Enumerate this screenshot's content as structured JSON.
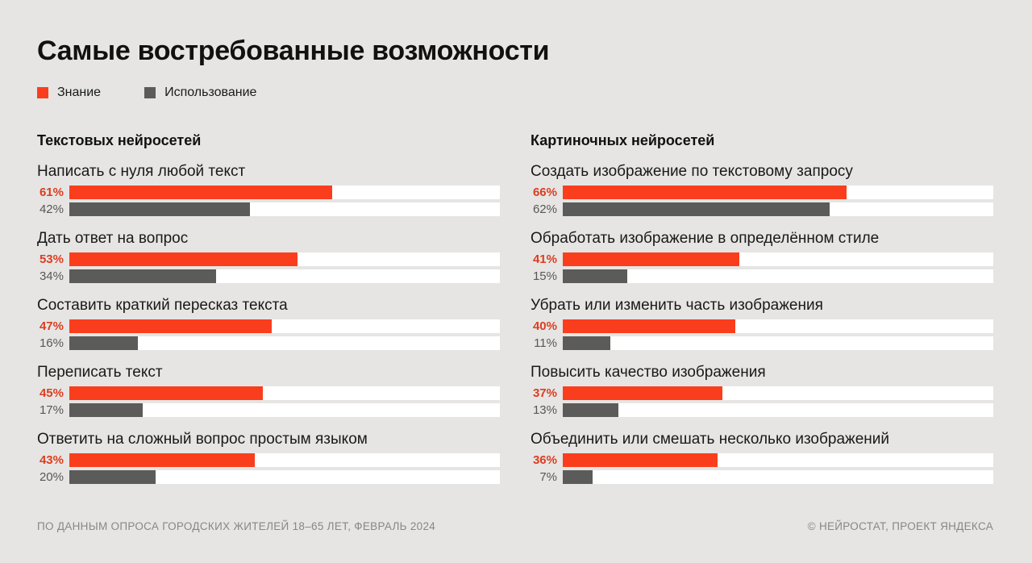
{
  "title": "Самые востребованные возможности",
  "legend": [
    {
      "label": "Знание",
      "color": "#fa3e1d"
    },
    {
      "label": "Использование",
      "color": "#5b5b59"
    }
  ],
  "colors": {
    "background": "#e6e5e3",
    "track": "#ffffff",
    "accent_red": "#fa3e1d",
    "accent_red_text": "#dd3d20",
    "bar_gray": "#5b5b59"
  },
  "footer": {
    "left": "ПО ДАННЫМ ОПРОСА ГОРОДСКИХ ЖИТЕЛЕЙ 18–65 ЛЕТ, ФЕВРАЛЬ 2024",
    "right": "© НЕЙРОСТАТ, ПРОЕКТ ЯНДЕКСА"
  },
  "chart_data": {
    "type": "bar",
    "orientation": "horizontal",
    "value_format": "percent",
    "xlim": [
      0,
      100
    ],
    "grid": false,
    "legend_position": "top-left",
    "series_names": [
      "Знание",
      "Использование"
    ],
    "groups": [
      {
        "title": "Текстовых нейросетей",
        "items": [
          {
            "label": "Написать с нуля любой текст",
            "values": [
              61,
              42
            ],
            "display": [
              "61%",
              "42%"
            ]
          },
          {
            "label": "Дать ответ на вопрос",
            "values": [
              53,
              34
            ],
            "display": [
              "53%",
              "34%"
            ]
          },
          {
            "label": "Составить краткий пересказ текста",
            "values": [
              47,
              16
            ],
            "display": [
              "47%",
              "16%"
            ]
          },
          {
            "label": "Переписать текст",
            "values": [
              45,
              17
            ],
            "display": [
              "45%",
              "17%"
            ]
          },
          {
            "label": "Ответить на сложный вопрос простым языком",
            "values": [
              43,
              20
            ],
            "display": [
              "43%",
              "20%"
            ]
          }
        ]
      },
      {
        "title": "Картиночных нейросетей",
        "items": [
          {
            "label": "Создать изображение по текстовому запросу",
            "values": [
              66,
              62
            ],
            "display": [
              "66%",
              "62%"
            ]
          },
          {
            "label": "Обработать изображение в определённом стиле",
            "values": [
              41,
              15
            ],
            "display": [
              "41%",
              "15%"
            ]
          },
          {
            "label": "Убрать или изменить часть изображения",
            "values": [
              40,
              11
            ],
            "display": [
              "40%",
              "11%"
            ]
          },
          {
            "label": "Повысить качество изображения",
            "values": [
              37,
              13
            ],
            "display": [
              "37%",
              "13%"
            ]
          },
          {
            "label": "Объединить или смешать несколько изображений",
            "values": [
              36,
              7
            ],
            "display": [
              "36%",
              "7%"
            ]
          }
        ]
      }
    ]
  }
}
